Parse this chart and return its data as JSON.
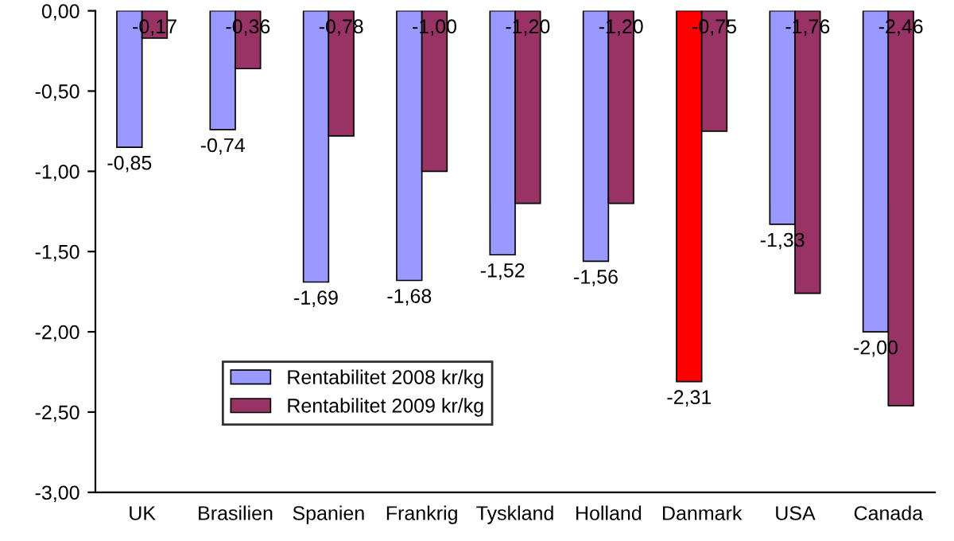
{
  "chart_data": {
    "type": "bar",
    "categories": [
      "UK",
      "Brasilien",
      "Spanien",
      "Frankrig",
      "Tyskland",
      "Holland",
      "Danmark",
      "USA",
      "Canada"
    ],
    "series": [
      {
        "name": "Rentabilitet 2008 kr/kg",
        "color": "#9999ff",
        "colors": [
          "#9999ff",
          "#9999ff",
          "#9999ff",
          "#9999ff",
          "#9999ff",
          "#9999ff",
          "#ff0000",
          "#9999ff",
          "#9999ff"
        ],
        "values": [
          -0.85,
          -0.74,
          -1.69,
          -1.68,
          -1.52,
          -1.56,
          -2.31,
          -1.33,
          -2.0
        ],
        "value_labels": [
          "-0,85",
          "-0,74",
          "-1,69",
          "-1,68",
          "-1,52",
          "-1,56",
          "-2,31",
          "-1,33",
          "-2,00"
        ]
      },
      {
        "name": "Rentabilitet 2009 kr/kg",
        "color": "#993366",
        "values": [
          -0.17,
          -0.36,
          -0.78,
          -1.0,
          -1.2,
          -1.2,
          -0.75,
          -1.76,
          -2.46
        ],
        "value_labels": [
          "-0,17",
          "-0,36",
          "-0,78",
          "-1,00",
          "-1,20",
          "-1,20",
          "-0,75",
          "-1,76",
          "-2,46"
        ]
      }
    ],
    "ylim": [
      -3,
      0
    ],
    "yticks": [
      {
        "value": 0,
        "label": "0,00"
      },
      {
        "value": -0.5,
        "label": "-0,50"
      },
      {
        "value": -1,
        "label": "-1,00"
      },
      {
        "value": -1.5,
        "label": "-1,50"
      },
      {
        "value": -2,
        "label": "-2,00"
      },
      {
        "value": -2.5,
        "label": "-2,50"
      },
      {
        "value": -3,
        "label": "-3,00"
      }
    ],
    "grid": false,
    "legend": "bottom left"
  }
}
